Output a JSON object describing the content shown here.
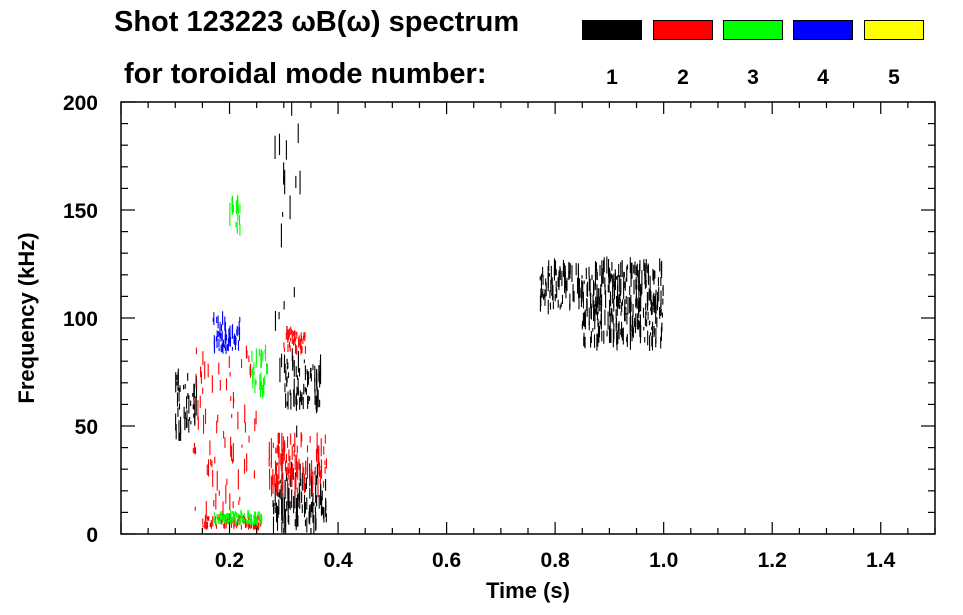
{
  "title": {
    "line1": "Shot 123223 ωB(ω) spectrum",
    "line2": "for toroidal mode number:"
  },
  "legend": [
    {
      "mode": "1",
      "color": "#000000"
    },
    {
      "mode": "2",
      "color": "#ff0000"
    },
    {
      "mode": "3",
      "color": "#00ff00"
    },
    {
      "mode": "4",
      "color": "#0000ff"
    },
    {
      "mode": "5",
      "color": "#ffff00"
    }
  ],
  "chart_data": {
    "type": "heatmap",
    "title": "Shot 123223 ωB(ω) spectrum for toroidal mode number:",
    "xlabel": "Time (s)",
    "ylabel": "Frequency (kHz)",
    "xlim": [
      0.0,
      1.5
    ],
    "ylim": [
      0,
      200
    ],
    "x_ticks": [
      0.2,
      0.4,
      0.6,
      0.8,
      1.0,
      1.2,
      1.4
    ],
    "x_tick_labels": [
      "0.2",
      "0.4",
      "0.6",
      "0.8",
      "1.0",
      "1.2",
      "1.4"
    ],
    "y_ticks": [
      0,
      50,
      100,
      150,
      200
    ],
    "y_tick_labels": [
      "0",
      "50",
      "100",
      "150",
      "200"
    ],
    "series": [
      {
        "name": "1",
        "color": "#000000",
        "features": [
          {
            "t": [
              0.1,
              0.14
            ],
            "f": [
              45,
              75
            ]
          },
          {
            "t": [
              0.28,
              0.38
            ],
            "f": [
              3,
              30
            ]
          },
          {
            "t": [
              0.3,
              0.37
            ],
            "f": [
              60,
              80
            ]
          },
          {
            "t": [
              0.28,
              0.33
            ],
            "f": [
              0,
              200
            ]
          },
          {
            "t": [
              0.77,
              1.0
            ],
            "f": [
              105,
              125
            ]
          },
          {
            "t": [
              0.85,
              1.0
            ],
            "f": [
              88,
              108
            ]
          }
        ]
      },
      {
        "name": "2",
        "color": "#ff0000",
        "features": [
          {
            "t": [
              0.13,
              0.25
            ],
            "f": [
              10,
              85
            ]
          },
          {
            "t": [
              0.27,
              0.38
            ],
            "f": [
              20,
              45
            ]
          },
          {
            "t": [
              0.3,
              0.34
            ],
            "f": [
              85,
              95
            ]
          },
          {
            "t": [
              0.15,
              0.26
            ],
            "f": [
              3,
              8
            ]
          }
        ]
      },
      {
        "name": "3",
        "color": "#00ff00",
        "features": [
          {
            "t": [
              0.24,
              0.27
            ],
            "f": [
              65,
              85
            ]
          },
          {
            "t": [
              0.2,
              0.22
            ],
            "f": [
              140,
              155
            ]
          },
          {
            "t": [
              0.17,
              0.26
            ],
            "f": [
              5,
              10
            ]
          }
        ]
      },
      {
        "name": "4",
        "color": "#0000ff",
        "features": [
          {
            "t": [
              0.17,
              0.22
            ],
            "f": [
              85,
              100
            ]
          }
        ]
      }
    ]
  }
}
